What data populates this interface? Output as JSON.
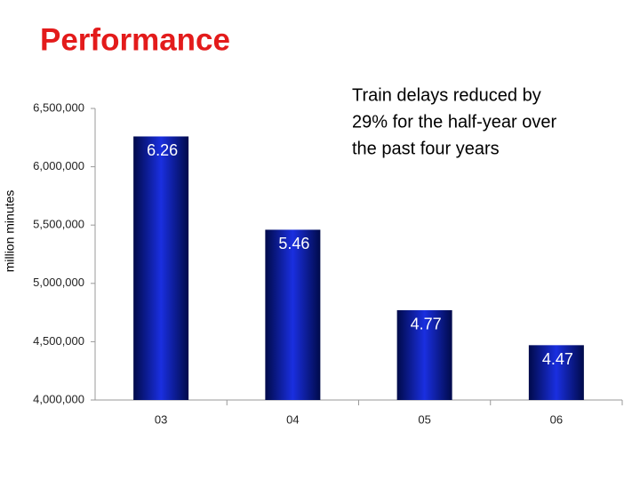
{
  "chart_data": {
    "type": "bar",
    "title": "Performance",
    "y_label": "million minutes",
    "annotation": [
      "Train delays reduced by",
      "29% for the half-year over",
      "the past four years"
    ],
    "categories": [
      "03",
      "04",
      "05",
      "06"
    ],
    "values": [
      6260000,
      5460000,
      4770000,
      4470000
    ],
    "value_labels": [
      "6.26",
      "5.46",
      "4.77",
      "4.47"
    ],
    "color": "#1a2fe0",
    "ylim": [
      4000000,
      6500000
    ],
    "yticks": [
      {
        "value": 4000000,
        "label": "4,000,000"
      },
      {
        "value": 4500000,
        "label": "4,500,000"
      },
      {
        "value": 5000000,
        "label": "5,000,000"
      },
      {
        "value": 5500000,
        "label": "5,500,000"
      },
      {
        "value": 6000000,
        "label": "6,000,000"
      },
      {
        "value": 6500000,
        "label": "6,500,000"
      }
    ],
    "grid": false
  }
}
